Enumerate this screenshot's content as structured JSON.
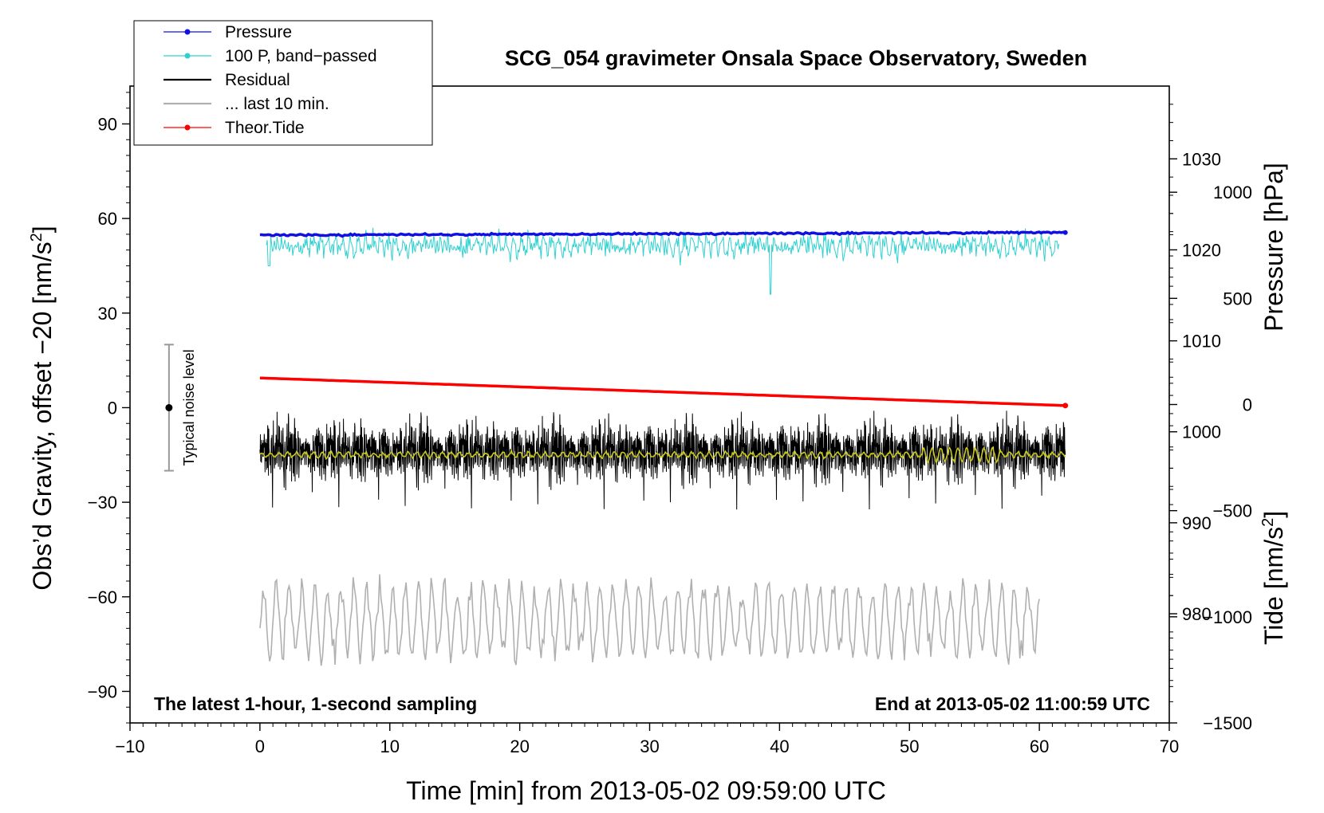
{
  "chart_data": {
    "type": "line",
    "title": "SCG_054 gravimeter Onsala Space Observatory, Sweden",
    "xlabel": "Time [min] from 2013-05-02 09:59:00 UTC",
    "ylabel_left_prefix": "Obs’d Gravity, offset −20 [nm/s",
    "ylabel_left_sup": "2",
    "ylabel_left_suffix": "]",
    "ylabel_pressure": "Pressure [hPa]",
    "ylabel_tide_prefix": "Tide [nm/s",
    "ylabel_tide_sup": "2",
    "ylabel_tide_suffix": "]",
    "xlim": [
      -10,
      70
    ],
    "ylim": [
      -100,
      102
    ],
    "pressure_lim": [
      968,
      1038
    ],
    "tide_lim": [
      -1500,
      1500
    ],
    "x_ticks": [
      -10,
      0,
      10,
      20,
      30,
      40,
      50,
      60,
      70
    ],
    "x_tick_labels": [
      "−10",
      "0",
      "10",
      "20",
      "30",
      "40",
      "50",
      "60",
      "70"
    ],
    "y_ticks": [
      -90,
      -60,
      -30,
      0,
      30,
      60,
      90
    ],
    "y_tick_labels": [
      "−90",
      "−60",
      "−30",
      "0",
      "30",
      "60",
      "90"
    ],
    "pressure_ticks": [
      980,
      990,
      1000,
      1010,
      1020,
      1030
    ],
    "pressure_tick_labels": [
      "980",
      "990",
      "1000",
      "1010",
      "1020",
      "1030"
    ],
    "tide_ticks": [
      -1500,
      -1000,
      -500,
      0,
      500,
      1000
    ],
    "tide_tick_labels": [
      "−1500",
      "−1000",
      "−500",
      "0",
      "500",
      "1000"
    ],
    "legend_location": "top-left",
    "legend": [
      {
        "label": "Pressure",
        "color": "#1010e0",
        "marker": true
      },
      {
        "label": "100 P, band−passed",
        "color": "#30d0d0",
        "marker": true
      },
      {
        "label": "Residual",
        "color": "#000000",
        "marker": false
      },
      {
        "label": "... last 10 min.",
        "color": "#b0b0b0",
        "marker": false
      },
      {
        "label": "Theor.Tide",
        "color": "#ff0000",
        "marker": true
      }
    ],
    "annotation_left": "The latest 1-hour, 1-second sampling",
    "annotation_right": "End at 2013-05-02 11:00:59 UTC",
    "noise_label": "Typical noise level",
    "noise_bar": {
      "x": -7,
      "center": 0,
      "low": -20,
      "high": 20
    },
    "series": [
      {
        "name": "Pressure",
        "axis": "pressure",
        "color": "#1010e0",
        "x_start": 0,
        "x_end": 62,
        "start": 1021.6,
        "end": 1021.9,
        "jitter": 0.25
      },
      {
        "name": "100 P, band−passed",
        "axis": "left",
        "color": "#30d0d0",
        "x_start": 0.5,
        "x_end": 61.5,
        "baseline": 51,
        "amplitude": 5
      },
      {
        "name": "Residual",
        "axis": "left",
        "color": "#000000",
        "x_start": 0,
        "x_end": 62,
        "baseline": -15,
        "amplitude": 14
      },
      {
        "name": "Residual smoothed",
        "axis": "left",
        "color": "#c8c820",
        "x_start": 0,
        "x_end": 62,
        "baseline": -15,
        "amplitude": 1.5
      },
      {
        "name": "... last 10 min.",
        "axis": "left",
        "color": "#b0b0b0",
        "x_start": 0,
        "x_end": 60,
        "baseline": -68,
        "amplitude": 12
      },
      {
        "name": "Theor.Tide",
        "axis": "tide",
        "color": "#ff0000",
        "x_start": 0,
        "x_end": 62,
        "start": 125,
        "end": -5
      }
    ]
  }
}
